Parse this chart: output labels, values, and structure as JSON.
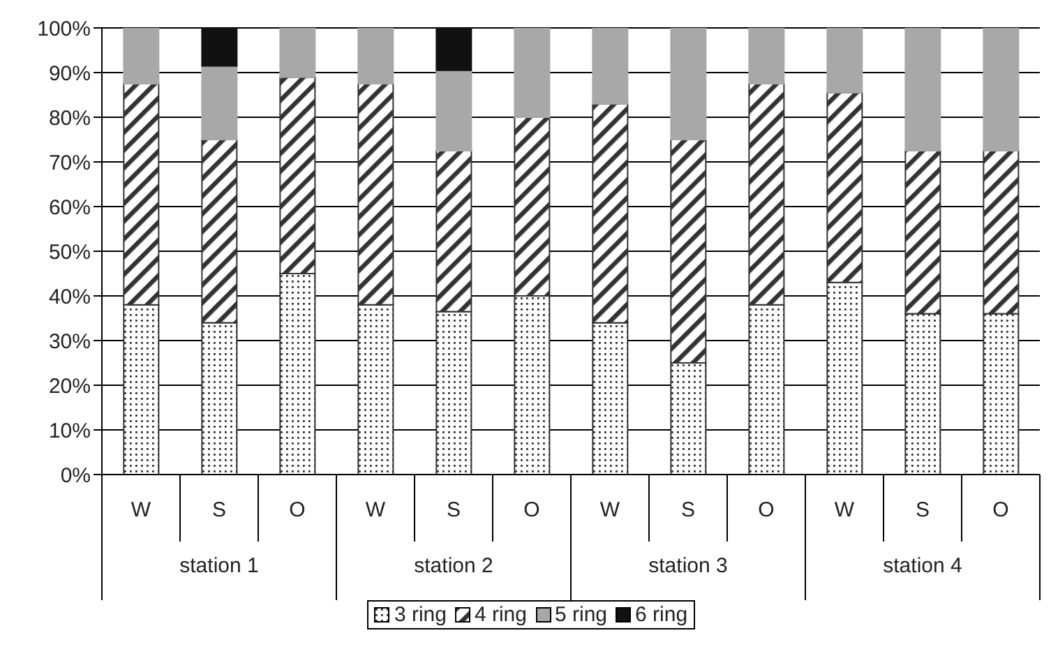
{
  "chart_data": {
    "type": "bar",
    "stacked": true,
    "categories": [
      "W",
      "S",
      "O",
      "W",
      "S",
      "O",
      "W",
      "S",
      "O",
      "W",
      "S",
      "O"
    ],
    "series": [
      {
        "name": "3 ring",
        "color": "#333333",
        "values": [
          38,
          34,
          45,
          38,
          36.5,
          40,
          34,
          25,
          38,
          43,
          36,
          36
        ]
      },
      {
        "name": "4 ring",
        "color": "#333333",
        "values": [
          49.5,
          41,
          44,
          49.5,
          36,
          40,
          49,
          50,
          49.5,
          42.5,
          36.5,
          36.5
        ]
      },
      {
        "name": "5 ring",
        "color": "#a8a8a8",
        "values": [
          12.5,
          16.5,
          11,
          12.5,
          18,
          20,
          17,
          25,
          12.5,
          14.5,
          27.5,
          27.5
        ]
      },
      {
        "name": "6 ring",
        "color": "#111111",
        "values": [
          0,
          8.5,
          0,
          0,
          9.5,
          0,
          0,
          0,
          0,
          0,
          0,
          0
        ]
      }
    ],
    "ylim": [
      0,
      100
    ],
    "yticks": [
      {
        "value": 0,
        "label": "0%"
      },
      {
        "value": 10,
        "label": "10%"
      },
      {
        "value": 20,
        "label": "20%"
      },
      {
        "value": 30,
        "label": "30%"
      },
      {
        "value": 40,
        "label": "40%"
      },
      {
        "value": 50,
        "label": "50%"
      },
      {
        "value": 60,
        "label": "60%"
      },
      {
        "value": 70,
        "label": "70%"
      },
      {
        "value": 80,
        "label": "80%"
      },
      {
        "value": 90,
        "label": "90%"
      },
      {
        "value": 100,
        "label": "100%"
      }
    ],
    "annotations": [
      "station 1",
      "station 2",
      "station 3",
      "station 4"
    ],
    "grid": "y",
    "legend": "bottom"
  }
}
